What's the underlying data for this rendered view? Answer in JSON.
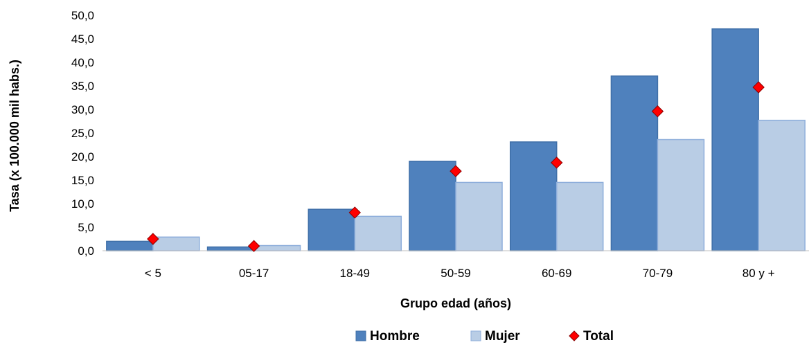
{
  "chart_data": {
    "type": "bar",
    "categories": [
      "< 5",
      "05-17",
      "18-49",
      "50-59",
      "60-69",
      "70-79",
      "80 y +"
    ],
    "series": [
      {
        "name": "Hombre",
        "kind": "bar",
        "color": "#4F81BD",
        "values": [
          2.0,
          0.8,
          8.8,
          19.0,
          23.1,
          37.1,
          47.1
        ]
      },
      {
        "name": "Mujer",
        "kind": "bar",
        "color": "#B9CDE5",
        "values": [
          2.9,
          1.1,
          7.3,
          14.5,
          14.5,
          23.6,
          27.7
        ]
      },
      {
        "name": "Total",
        "kind": "marker",
        "color": "#FF0000",
        "values": [
          2.5,
          1.0,
          8.1,
          16.9,
          18.7,
          29.6,
          34.7
        ]
      }
    ],
    "xlabel": "Grupo edad (años)",
    "ylabel": "Tasa  (x 100.000 mil habs.)",
    "ylim": [
      0,
      50
    ],
    "yticks": [
      "0,0",
      "5,0",
      "10,0",
      "15,0",
      "20,0",
      "25,0",
      "30,0",
      "35,0",
      "40,0",
      "45,0",
      "50,0"
    ],
    "grid": false,
    "legend_position": "bottom"
  }
}
